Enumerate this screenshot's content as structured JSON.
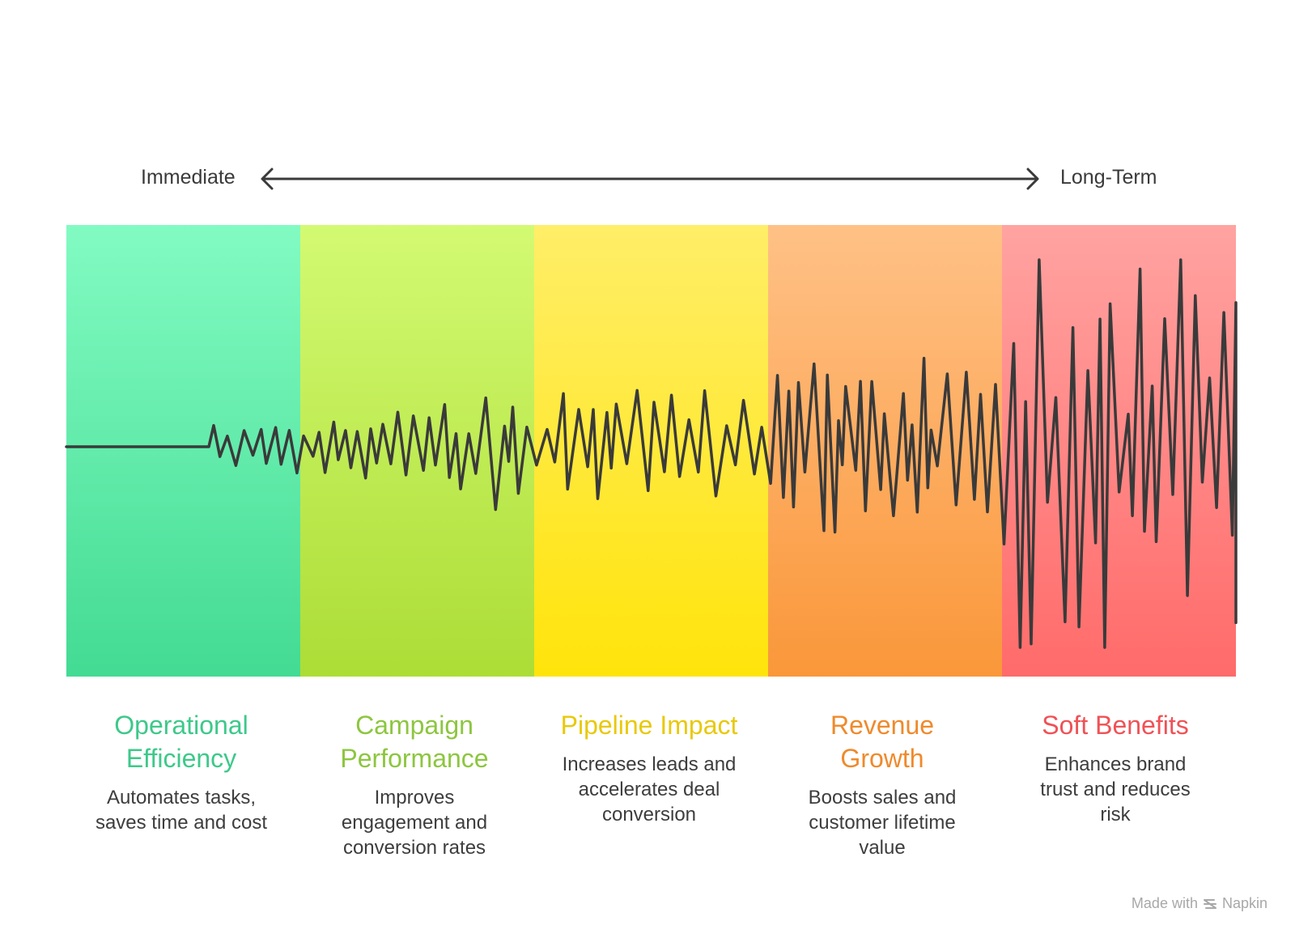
{
  "axis": {
    "left_label": "Immediate",
    "right_label": "Long-Term"
  },
  "segments": [
    {
      "title": "Operational Efficiency",
      "description": "Automates tasks, saves time and cost",
      "title_color": "#3dc98a",
      "band_top": "#82fbc2",
      "band_bottom": "#43db93"
    },
    {
      "title": "Campaign Performance",
      "description": "Improves engagement and conversion rates",
      "title_color": "#8dc63f",
      "band_top": "#d3fa72",
      "band_bottom": "#acdd36"
    },
    {
      "title": "Pipeline Impact",
      "description": "Increases leads and accelerates deal conversion",
      "title_color": "#e8c90a",
      "band_top": "#ffee68",
      "band_bottom": "#ffe40b"
    },
    {
      "title": "Revenue Growth",
      "description": "Boosts sales and customer lifetime value",
      "title_color": "#ef8a2c",
      "band_top": "#ffc186",
      "band_bottom": "#fa973a"
    },
    {
      "title": "Soft Benefits",
      "description": "Enhances brand trust and reduces risk",
      "title_color": "#ef5256",
      "band_top": "#ffa3a1",
      "band_bottom": "#ff6b6a"
    }
  ],
  "footer": {
    "made_with": "Made with",
    "brand": "Napkin"
  },
  "colors": {
    "line": "#3a3a3a",
    "text": "#3d3d3d"
  }
}
